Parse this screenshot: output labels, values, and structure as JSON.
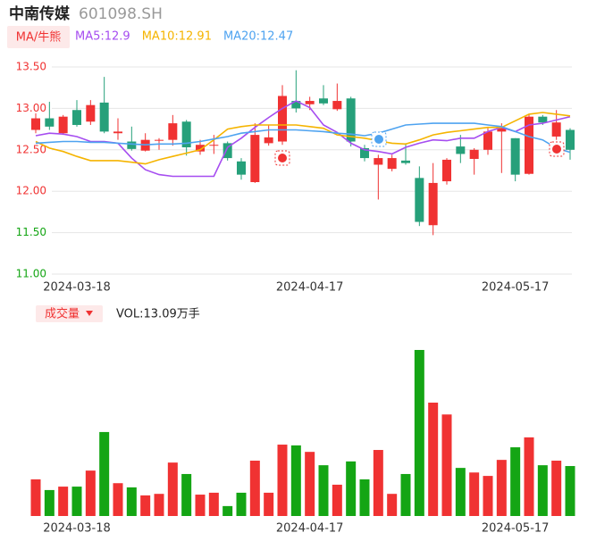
{
  "chart_data": {
    "type": "candlestick",
    "title": "中南传媒",
    "subtitle": "601098.SH",
    "ma_button": "MA/牛熊",
    "categories": [
      null,
      null,
      null,
      "2024-03-18",
      null,
      null,
      null,
      null,
      null,
      null,
      null,
      null,
      null,
      null,
      null,
      null,
      null,
      null,
      null,
      null,
      "2024-04-17",
      null,
      null,
      null,
      null,
      null,
      null,
      null,
      null,
      null,
      null,
      null,
      null,
      null,
      null,
      "2024-05-17",
      null,
      null,
      null,
      null
    ],
    "open": [
      12.74,
      12.88,
      12.7,
      12.98,
      12.84,
      13.07,
      12.7,
      12.6,
      12.49,
      12.61,
      12.62,
      12.84,
      12.48,
      12.55,
      12.58,
      12.36,
      12.11,
      12.58,
      12.6,
      13.09,
      13.05,
      13.12,
      12.99,
      13.12,
      12.52,
      12.32,
      12.27,
      12.37,
      12.16,
      11.59,
      12.12,
      12.54,
      12.39,
      12.5,
      12.72,
      12.64,
      12.21,
      12.9,
      12.66,
      12.74
    ],
    "high": [
      12.94,
      13.08,
      12.92,
      13.1,
      13.1,
      13.38,
      12.88,
      12.78,
      12.7,
      12.64,
      12.92,
      12.86,
      12.62,
      12.68,
      12.6,
      12.4,
      12.82,
      12.8,
      13.28,
      13.46,
      13.14,
      13.28,
      13.3,
      13.14,
      12.56,
      12.44,
      12.44,
      12.58,
      12.3,
      12.34,
      12.4,
      12.68,
      12.52,
      12.76,
      12.82,
      12.64,
      12.93,
      12.92,
      12.98,
      12.76
    ],
    "low": [
      12.7,
      12.74,
      12.68,
      12.78,
      12.8,
      12.7,
      12.62,
      12.49,
      12.48,
      12.5,
      12.55,
      12.43,
      12.44,
      12.45,
      12.37,
      12.14,
      12.1,
      12.55,
      12.56,
      12.95,
      12.98,
      13.04,
      12.97,
      12.54,
      12.36,
      11.9,
      12.24,
      12.32,
      11.58,
      11.47,
      12.08,
      12.34,
      12.2,
      12.44,
      12.22,
      12.12,
      12.2,
      12.8,
      12.62,
      12.38
    ],
    "close": [
      12.88,
      12.78,
      12.9,
      12.8,
      13.04,
      12.72,
      12.72,
      12.51,
      12.62,
      12.62,
      12.82,
      12.53,
      12.56,
      12.56,
      12.4,
      12.2,
      12.68,
      12.65,
      13.15,
      13.0,
      13.09,
      13.06,
      13.09,
      12.6,
      12.4,
      12.4,
      12.4,
      12.34,
      11.63,
      12.1,
      12.38,
      12.45,
      12.5,
      12.72,
      12.76,
      12.2,
      12.9,
      12.83,
      12.83,
      12.5
    ],
    "up_color": "#f03232",
    "down_color": "#26a07a",
    "ylim": [
      11,
      13.5
    ],
    "yticks": [
      {
        "value": 13.5,
        "label": "13.50"
      },
      {
        "value": 13,
        "label": "13.00"
      },
      {
        "value": 12.5,
        "label": "12.50"
      },
      {
        "value": 12,
        "label": "12.00"
      },
      {
        "value": 11.5,
        "label": "11.50"
      },
      {
        "value": 11,
        "label": "11.00"
      }
    ],
    "ytick_colors": [
      "#f03232",
      "#f03232",
      "#f03232",
      "#f03232",
      "#14a514",
      "#14a514"
    ],
    "grid": true,
    "ma_series": [
      {
        "name": "MA5:12.9",
        "color": "#a64df0",
        "values": [
          12.67,
          12.7,
          12.69,
          12.66,
          12.6,
          12.6,
          12.58,
          12.4,
          12.26,
          12.2,
          12.18,
          12.18,
          12.18,
          12.18,
          12.53,
          12.64,
          12.77,
          12.89,
          13.0,
          13.09,
          13.01,
          12.8,
          12.71,
          12.58,
          12.5,
          12.48,
          12.45,
          12.53,
          12.58,
          12.62,
          12.61,
          12.64,
          12.64,
          12.72,
          12.77,
          12.72,
          12.8,
          12.82,
          12.86,
          12.9
        ]
      },
      {
        "name": "MA10:12.91",
        "color": "#f5b400",
        "values": [
          12.6,
          12.52,
          12.48,
          12.42,
          12.37,
          12.37,
          12.37,
          12.35,
          12.33,
          12.38,
          12.42,
          12.46,
          12.5,
          12.62,
          12.75,
          12.78,
          12.8,
          12.8,
          12.8,
          12.8,
          12.78,
          12.76,
          12.68,
          12.66,
          12.64,
          12.61,
          12.58,
          12.57,
          12.62,
          12.68,
          12.71,
          12.73,
          12.75,
          12.77,
          12.77,
          12.85,
          12.93,
          12.95,
          12.93,
          12.91
        ]
      },
      {
        "name": "MA20:12.47",
        "color": "#4ea3f0",
        "values": [
          12.58,
          12.59,
          12.6,
          12.6,
          12.59,
          12.59,
          12.58,
          12.57,
          12.56,
          12.57,
          12.57,
          12.58,
          12.6,
          12.63,
          12.66,
          12.7,
          12.72,
          12.74,
          12.74,
          12.74,
          12.73,
          12.72,
          12.7,
          12.69,
          12.67,
          12.7,
          12.75,
          12.8,
          12.81,
          12.82,
          12.82,
          12.82,
          12.82,
          12.8,
          12.78,
          12.72,
          12.66,
          12.62,
          12.52,
          12.47
        ]
      }
    ],
    "volume": {
      "label": "成交量",
      "summary": "VOL:13.09万手",
      "up_color": "#f03232",
      "down_color": "#14a514",
      "ylim": [
        0,
        43.5
      ],
      "values": [
        9.6,
        6.8,
        7.7,
        7.7,
        11.9,
        22.0,
        8.6,
        7.5,
        5.4,
        5.8,
        14.0,
        11.0,
        5.6,
        6.1,
        2.6,
        6.1,
        14.5,
        6.1,
        18.7,
        18.5,
        16.8,
        13.3,
        8.2,
        14.3,
        9.6,
        17.3,
        5.8,
        11.0,
        43.5,
        29.7,
        26.6,
        12.6,
        11.4,
        10.5,
        14.7,
        18.0,
        20.6,
        13.3,
        14.5,
        13.09
      ]
    }
  }
}
